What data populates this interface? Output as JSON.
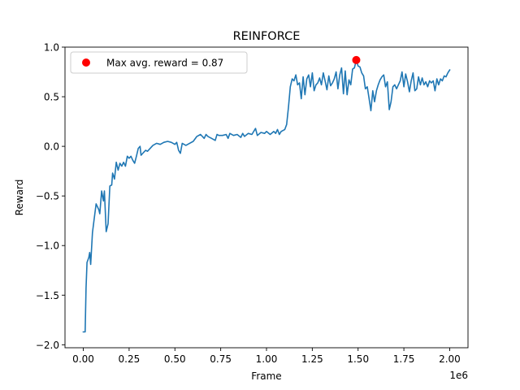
{
  "chart_data": {
    "type": "line",
    "title": "REINFORCE",
    "xlabel": "Frame",
    "ylabel": "Reward",
    "x_offset_label": "1e6",
    "xlim": [
      -0.1,
      2.1
    ],
    "ylim": [
      -2.03,
      1.0
    ],
    "x_ticks": [
      0.0,
      0.25,
      0.5,
      0.75,
      1.0,
      1.25,
      1.5,
      1.75,
      2.0
    ],
    "x_tick_labels": [
      "0.00",
      "0.25",
      "0.50",
      "0.75",
      "1.00",
      "1.25",
      "1.50",
      "1.75",
      "2.00"
    ],
    "y_ticks": [
      -2.0,
      -1.5,
      -1.0,
      -0.5,
      0.0,
      0.5,
      1.0
    ],
    "y_tick_labels": [
      "−2.0",
      "−1.5",
      "−1.0",
      "−0.5",
      "0.0",
      "0.5",
      "1.0"
    ],
    "grid": false,
    "legend_position": "upper-left",
    "colors": {
      "line": "#1f77b4",
      "marker": "#ff0000"
    },
    "series": [
      {
        "values_x_unit": "1e6 frames",
        "points": [
          [
            0.0,
            -1.87
          ],
          [
            0.01,
            -1.87
          ],
          [
            0.015,
            -1.43
          ],
          [
            0.02,
            -1.17
          ],
          [
            0.03,
            -1.12
          ],
          [
            0.035,
            -1.07
          ],
          [
            0.04,
            -1.19
          ],
          [
            0.05,
            -0.87
          ],
          [
            0.06,
            -0.72
          ],
          [
            0.07,
            -0.58
          ],
          [
            0.085,
            -0.64
          ],
          [
            0.09,
            -0.68
          ],
          [
            0.1,
            -0.45
          ],
          [
            0.11,
            -0.55
          ],
          [
            0.115,
            -0.45
          ],
          [
            0.125,
            -0.86
          ],
          [
            0.135,
            -0.78
          ],
          [
            0.145,
            -0.4
          ],
          [
            0.155,
            -0.39
          ],
          [
            0.16,
            -0.27
          ],
          [
            0.17,
            -0.33
          ],
          [
            0.18,
            -0.16
          ],
          [
            0.19,
            -0.24
          ],
          [
            0.2,
            -0.17
          ],
          [
            0.21,
            -0.2
          ],
          [
            0.22,
            -0.16
          ],
          [
            0.23,
            -0.2
          ],
          [
            0.24,
            -0.1
          ],
          [
            0.25,
            -0.12
          ],
          [
            0.26,
            -0.1
          ],
          [
            0.27,
            -0.14
          ],
          [
            0.28,
            -0.17
          ],
          [
            0.29,
            -0.1
          ],
          [
            0.3,
            -0.02
          ],
          [
            0.31,
            0.0
          ],
          [
            0.315,
            -0.09
          ],
          [
            0.33,
            -0.06
          ],
          [
            0.34,
            -0.04
          ],
          [
            0.35,
            -0.05
          ],
          [
            0.36,
            -0.03
          ],
          [
            0.38,
            0.01
          ],
          [
            0.4,
            0.03
          ],
          [
            0.42,
            0.02
          ],
          [
            0.44,
            0.04
          ],
          [
            0.46,
            0.05
          ],
          [
            0.48,
            0.04
          ],
          [
            0.5,
            0.02
          ],
          [
            0.51,
            0.04
          ],
          [
            0.52,
            -0.04
          ],
          [
            0.53,
            -0.07
          ],
          [
            0.54,
            0.03
          ],
          [
            0.56,
            0.01
          ],
          [
            0.58,
            0.03
          ],
          [
            0.6,
            0.05
          ],
          [
            0.62,
            0.1
          ],
          [
            0.64,
            0.12
          ],
          [
            0.66,
            0.08
          ],
          [
            0.67,
            0.12
          ],
          [
            0.68,
            0.1
          ],
          [
            0.7,
            0.08
          ],
          [
            0.72,
            0.06
          ],
          [
            0.73,
            0.12
          ],
          [
            0.74,
            0.11
          ],
          [
            0.76,
            0.11
          ],
          [
            0.78,
            0.12
          ],
          [
            0.79,
            0.08
          ],
          [
            0.8,
            0.13
          ],
          [
            0.82,
            0.11
          ],
          [
            0.84,
            0.12
          ],
          [
            0.86,
            0.09
          ],
          [
            0.87,
            0.13
          ],
          [
            0.88,
            0.1
          ],
          [
            0.9,
            0.13
          ],
          [
            0.92,
            0.12
          ],
          [
            0.94,
            0.18
          ],
          [
            0.95,
            0.11
          ],
          [
            0.97,
            0.14
          ],
          [
            0.99,
            0.13
          ],
          [
            1.0,
            0.15
          ],
          [
            1.02,
            0.12
          ],
          [
            1.04,
            0.15
          ],
          [
            1.05,
            0.13
          ],
          [
            1.06,
            0.17
          ],
          [
            1.07,
            0.12
          ],
          [
            1.08,
            0.15
          ],
          [
            1.1,
            0.17
          ],
          [
            1.11,
            0.22
          ],
          [
            1.12,
            0.4
          ],
          [
            1.13,
            0.6
          ],
          [
            1.14,
            0.68
          ],
          [
            1.15,
            0.66
          ],
          [
            1.16,
            0.72
          ],
          [
            1.17,
            0.62
          ],
          [
            1.18,
            0.64
          ],
          [
            1.19,
            0.48
          ],
          [
            1.2,
            0.7
          ],
          [
            1.21,
            0.52
          ],
          [
            1.22,
            0.68
          ],
          [
            1.23,
            0.72
          ],
          [
            1.24,
            0.6
          ],
          [
            1.25,
            0.74
          ],
          [
            1.26,
            0.56
          ],
          [
            1.27,
            0.62
          ],
          [
            1.28,
            0.64
          ],
          [
            1.29,
            0.69
          ],
          [
            1.3,
            0.62
          ],
          [
            1.31,
            0.74
          ],
          [
            1.32,
            0.66
          ],
          [
            1.33,
            0.57
          ],
          [
            1.34,
            0.71
          ],
          [
            1.35,
            0.61
          ],
          [
            1.36,
            0.64
          ],
          [
            1.37,
            0.68
          ],
          [
            1.38,
            0.75
          ],
          [
            1.39,
            0.58
          ],
          [
            1.4,
            0.72
          ],
          [
            1.41,
            0.79
          ],
          [
            1.42,
            0.53
          ],
          [
            1.43,
            0.76
          ],
          [
            1.44,
            0.52
          ],
          [
            1.45,
            0.67
          ],
          [
            1.46,
            0.62
          ],
          [
            1.47,
            0.78
          ],
          [
            1.48,
            0.79
          ],
          [
            1.49,
            0.87
          ],
          [
            1.5,
            0.81
          ],
          [
            1.51,
            0.8
          ],
          [
            1.52,
            0.74
          ],
          [
            1.53,
            0.71
          ],
          [
            1.54,
            0.58
          ],
          [
            1.55,
            0.6
          ],
          [
            1.56,
            0.48
          ],
          [
            1.57,
            0.36
          ],
          [
            1.58,
            0.56
          ],
          [
            1.59,
            0.45
          ],
          [
            1.6,
            0.56
          ],
          [
            1.61,
            0.62
          ],
          [
            1.62,
            0.67
          ],
          [
            1.63,
            0.7
          ],
          [
            1.64,
            0.72
          ],
          [
            1.65,
            0.6
          ],
          [
            1.66,
            0.65
          ],
          [
            1.67,
            0.37
          ],
          [
            1.68,
            0.45
          ],
          [
            1.69,
            0.6
          ],
          [
            1.7,
            0.62
          ],
          [
            1.71,
            0.58
          ],
          [
            1.72,
            0.62
          ],
          [
            1.73,
            0.66
          ],
          [
            1.74,
            0.75
          ],
          [
            1.75,
            0.6
          ],
          [
            1.76,
            0.73
          ],
          [
            1.77,
            0.65
          ],
          [
            1.78,
            0.55
          ],
          [
            1.79,
            0.66
          ],
          [
            1.8,
            0.74
          ],
          [
            1.81,
            0.56
          ],
          [
            1.82,
            0.58
          ],
          [
            1.83,
            0.7
          ],
          [
            1.84,
            0.62
          ],
          [
            1.85,
            0.69
          ],
          [
            1.86,
            0.62
          ],
          [
            1.87,
            0.65
          ],
          [
            1.88,
            0.6
          ],
          [
            1.89,
            0.66
          ],
          [
            1.9,
            0.64
          ],
          [
            1.91,
            0.66
          ],
          [
            1.92,
            0.56
          ],
          [
            1.93,
            0.68
          ],
          [
            1.94,
            0.62
          ],
          [
            1.95,
            0.68
          ],
          [
            1.96,
            0.66
          ],
          [
            1.97,
            0.71
          ],
          [
            1.98,
            0.7
          ],
          [
            1.99,
            0.74
          ],
          [
            2.0,
            0.77
          ]
        ]
      }
    ],
    "highlight": {
      "x": 1.49,
      "y": 0.87,
      "legend_label": "Max avg. reward = 0.87"
    }
  }
}
